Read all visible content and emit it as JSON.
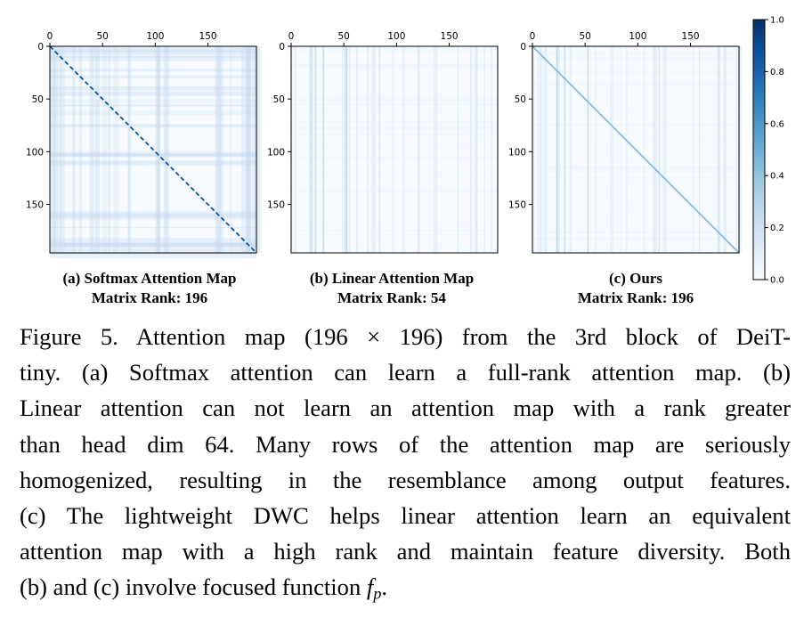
{
  "figure": {
    "panels": [
      {
        "id": "a",
        "caption_line1": "(a) Softmax Attention Map",
        "caption_line2": "Matrix Rank: 196",
        "diagonal": "strong-dashed"
      },
      {
        "id": "b",
        "caption_line1": "(b) Linear Attention Map",
        "caption_line2": "Matrix Rank: 54",
        "diagonal": "none"
      },
      {
        "id": "c",
        "caption_line1": "(c) Ours",
        "caption_line2": "Matrix Rank: 196",
        "diagonal": "solid"
      }
    ],
    "axes": {
      "x_ticks": [
        0,
        50,
        100,
        150
      ],
      "y_ticks": [
        0,
        50,
        100,
        150
      ],
      "range": [
        0,
        196
      ]
    },
    "colorbar": {
      "ticks": [
        "0.0",
        "0.2",
        "0.4",
        "0.6",
        "0.8",
        "1.0"
      ],
      "colormap": "Blues",
      "color_low": "#f7fbff",
      "color_high": "#08306b"
    }
  },
  "caption": {
    "lines": [
      "Figure 5. Attention map (196 × 196) from the 3rd block of DeiT-",
      "tiny. (a) Softmax attention can learn a full-rank attention map. (b)",
      "Linear attention can not learn an attention map with a rank greater",
      "than head dim 64. Many rows of the attention map are seriously",
      "homogenized, resulting in the resemblance among output features.",
      "(c) The lightweight DWC helps linear attention learn an equivalent",
      "attention map with a high rank and maintain feature diversity. Both"
    ],
    "last_line_prefix": "(b) and (c) involve focused function ",
    "function_symbol": "f",
    "function_subscript": "p",
    "last_line_suffix": "."
  }
}
